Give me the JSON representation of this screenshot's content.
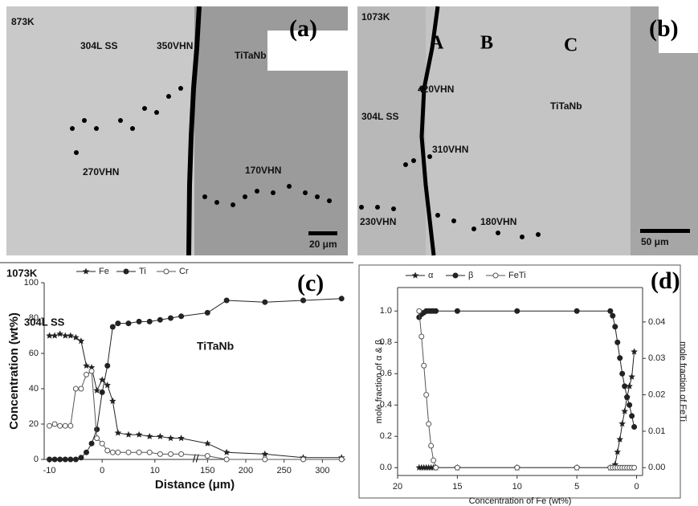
{
  "micrographs": [
    {
      "label": "(a)",
      "annotations": [
        "873K",
        "304L SS",
        "350VHN",
        "TiTaNb",
        "270VHN",
        "170VHN"
      ],
      "scale_bar": "20 μm"
    },
    {
      "label": "(b)",
      "annotations": [
        "1073K",
        "A",
        "B",
        "C",
        "304L SS",
        "420VHN",
        "TiTaNb",
        "310VHN",
        "230VHN",
        "180VHN"
      ],
      "scale_bar": "50 μm"
    }
  ],
  "chart_data": [
    {
      "type": "line",
      "panel_label": "(c)",
      "annotations": [
        "1073K",
        "304L SS",
        "TiTaNb"
      ],
      "x_label": "Distance (μm)",
      "y_label": "Concentration (wt%)",
      "x": [
        -10,
        -9,
        -8,
        -7,
        -6,
        -5,
        -4,
        -3,
        -2,
        -1,
        0,
        1,
        2,
        3,
        5,
        7,
        9,
        11,
        13,
        15,
        150,
        175,
        225,
        275,
        325
      ],
      "xlim": [
        -11,
        330
      ],
      "axis_break": [
        17,
        140
      ],
      "xticks": [
        -10,
        0,
        10,
        150,
        200,
        250,
        300
      ],
      "ylim": [
        0,
        100
      ],
      "yticks": [
        0,
        20,
        40,
        60,
        80,
        100
      ],
      "series": [
        {
          "name": "Fe",
          "color": "#222222",
          "marker": "star",
          "values": [
            70,
            70,
            71,
            70,
            70,
            69,
            67,
            53,
            52,
            39,
            45,
            42,
            33,
            15,
            14,
            14,
            13,
            13,
            12,
            12,
            9,
            4,
            3,
            1,
            1
          ]
        },
        {
          "name": "Ti",
          "color": "#222222",
          "marker": "filled-circle",
          "values": [
            0,
            0,
            0,
            0,
            0,
            0,
            1,
            4,
            9,
            17,
            38,
            53,
            75,
            77,
            77,
            78,
            78,
            79,
            80,
            81,
            83,
            90,
            89,
            90,
            91
          ]
        },
        {
          "name": "Cr",
          "color": "#555555",
          "marker": "open-circle",
          "values": [
            19,
            20,
            19,
            19,
            19,
            40,
            40,
            48,
            50,
            12,
            9,
            5,
            4,
            4,
            4,
            4,
            4,
            3,
            3,
            3,
            2,
            0,
            0,
            0,
            0
          ]
        }
      ]
    },
    {
      "type": "line",
      "panel_label": "(d)",
      "x_label": "Concentration of Fe (wt%)",
      "y_label": "mole fraction of α & β",
      "y2_label": "mole fraction of FeTi",
      "x": [
        18.2,
        18,
        17.8,
        17.6,
        17.4,
        17.2,
        17,
        16.8,
        15,
        10,
        5,
        2.2,
        2,
        1.8,
        1.6,
        1.4,
        1.2,
        1,
        0.8,
        0.6,
        0.4,
        0.2
      ],
      "xlim": [
        20,
        -0.5
      ],
      "xticks": [
        20,
        15,
        10,
        5,
        0
      ],
      "ylim": [
        -0.05,
        1.15
      ],
      "yticks": [
        {
          "value": 0,
          "label": "0.0"
        },
        {
          "value": 0.2,
          "label": "0.2"
        },
        {
          "value": 0.4,
          "label": "0.4"
        },
        {
          "value": 0.6,
          "label": "0.6"
        },
        {
          "value": 0.8,
          "label": "0.8"
        },
        {
          "value": 1,
          "label": "1.0"
        }
      ],
      "y2lim": [
        -0.00215,
        0.04945
      ],
      "y2ticks": [
        {
          "value": 0,
          "label": "0.00"
        },
        {
          "value": 0.01,
          "label": "0.01"
        },
        {
          "value": 0.02,
          "label": "0.02"
        },
        {
          "value": 0.03,
          "label": "0.03"
        },
        {
          "value": 0.04,
          "label": "0.04"
        }
      ],
      "series": [
        {
          "name": "α",
          "color": "#222222",
          "marker": "star",
          "values": [
            0,
            0,
            0,
            0,
            0,
            0,
            0,
            0,
            0,
            0,
            0,
            0,
            0,
            0.02,
            0.1,
            0.18,
            0.28,
            0.36,
            0.45,
            0.52,
            0.58,
            0.74
          ]
        },
        {
          "name": "β",
          "color": "#222222",
          "marker": "filled-circle",
          "values": [
            0.96,
            0.98,
            0.99,
            1,
            1,
            1,
            1,
            1,
            1,
            1,
            1,
            1,
            0.97,
            0.9,
            0.8,
            0.7,
            0.6,
            0.52,
            0.45,
            0.4,
            0.33,
            0.26
          ]
        },
        {
          "name": "FeTi",
          "color": "#555555",
          "marker": "open-circle",
          "axis": "y2",
          "values": [
            0.043,
            0.036,
            0.028,
            0.02,
            0.012,
            0.006,
            0.002,
            0,
            0,
            0,
            0,
            0,
            0,
            0,
            0,
            0,
            0,
            0,
            0,
            0,
            0,
            0
          ]
        }
      ]
    }
  ]
}
